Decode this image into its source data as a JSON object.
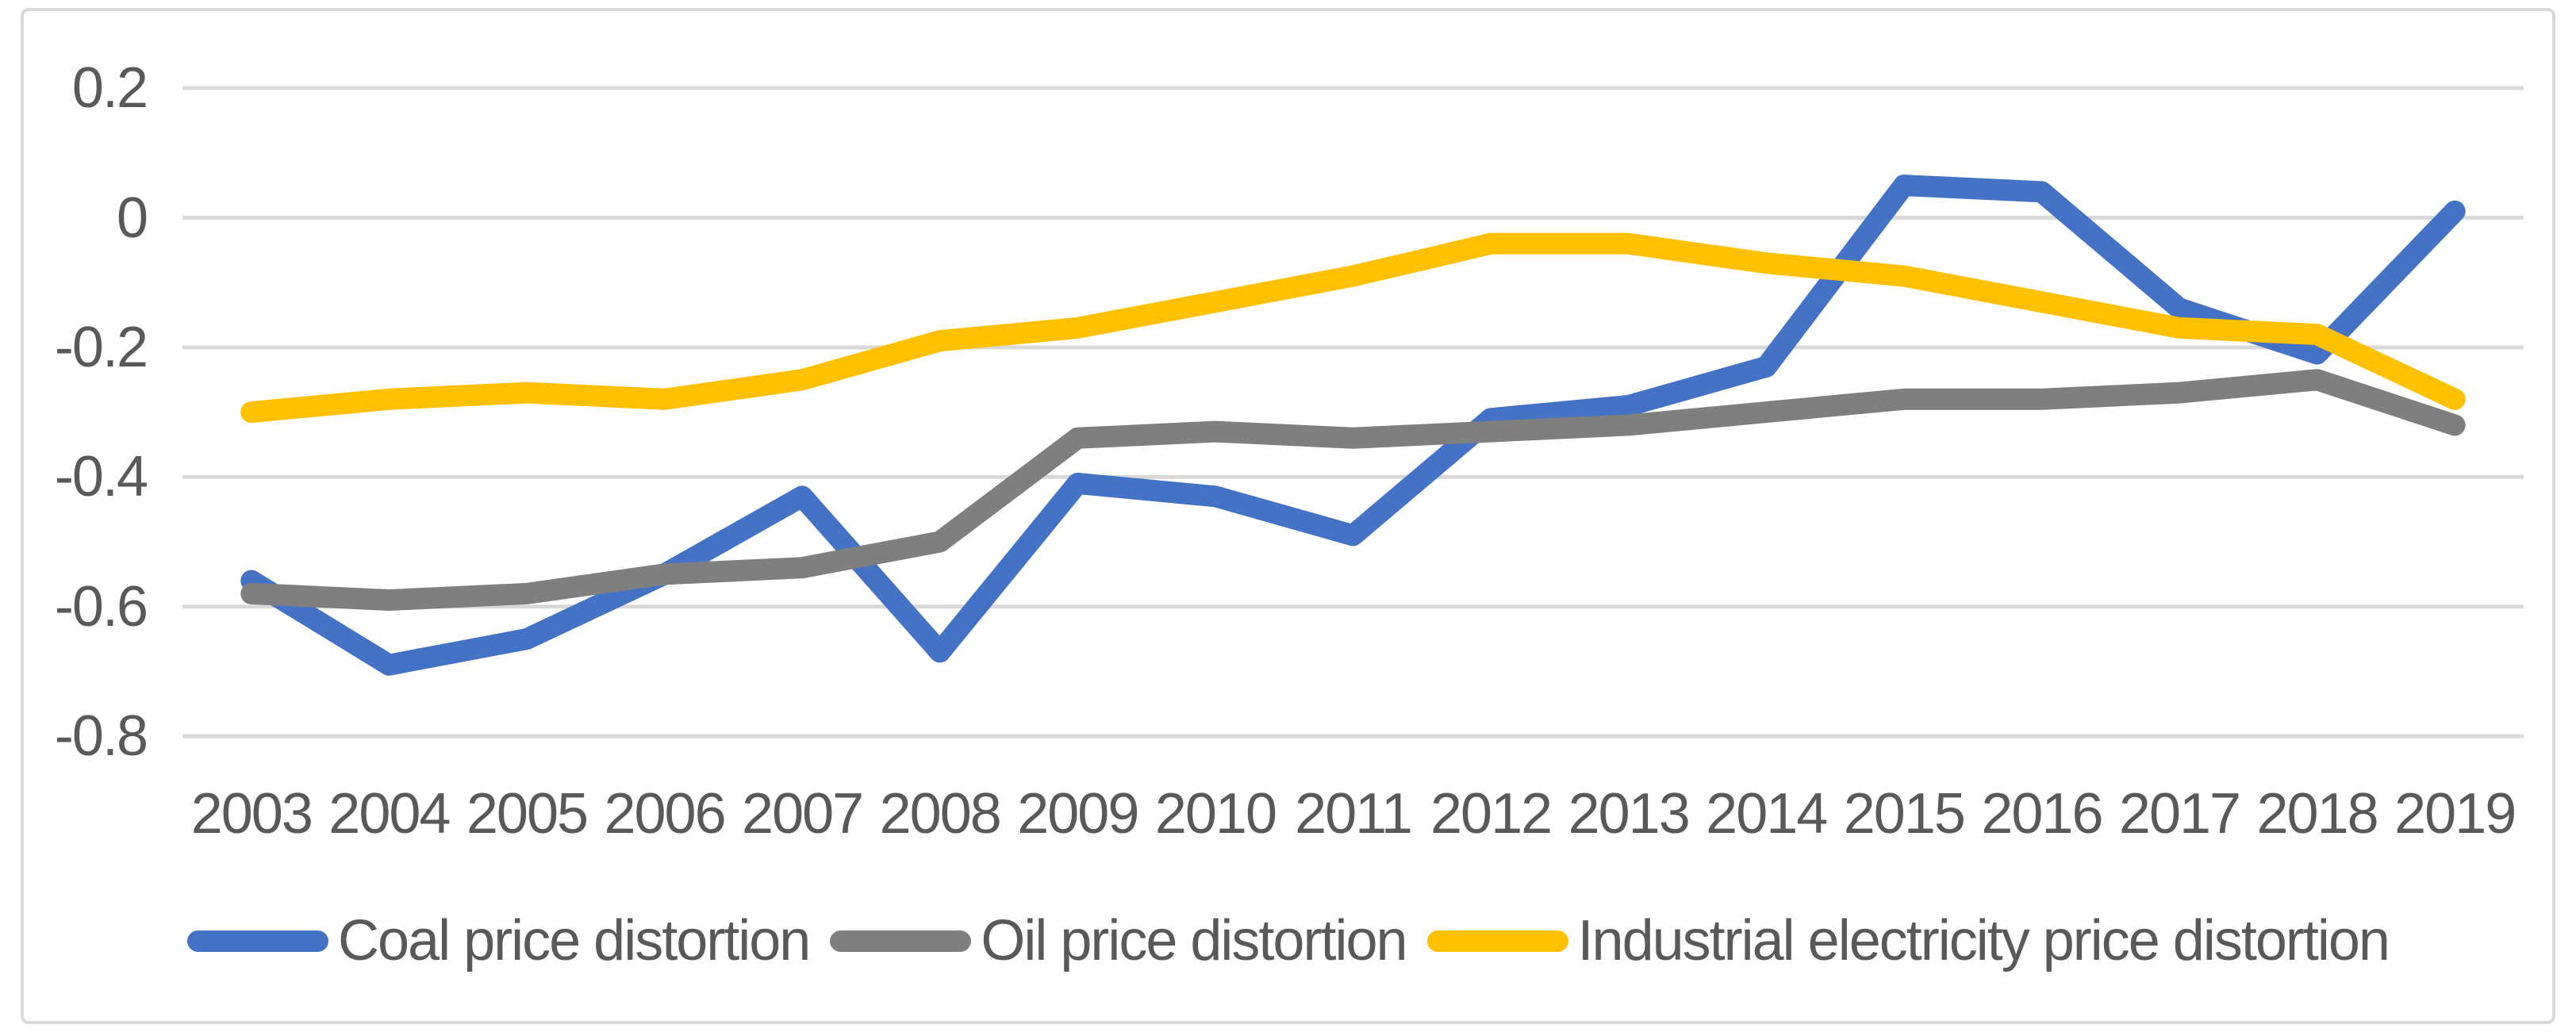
{
  "chart_data": {
    "type": "line",
    "title": "",
    "xlabel": "",
    "ylabel": "",
    "categories": [
      "2003",
      "2004",
      "2005",
      "2006",
      "2007",
      "2008",
      "2009",
      "2010",
      "2011",
      "2012",
      "2013",
      "2014",
      "2015",
      "2016",
      "2017",
      "2018",
      "2019"
    ],
    "series": [
      {
        "name": "Coal price distortion",
        "color": "#4472C4",
        "values": [
          -0.56,
          -0.69,
          -0.65,
          -0.55,
          -0.43,
          -0.67,
          -0.41,
          -0.43,
          -0.49,
          -0.31,
          -0.29,
          -0.23,
          0.05,
          0.04,
          -0.14,
          -0.21,
          0.01
        ]
      },
      {
        "name": "Oil price distortion",
        "color": "#7F7F7F",
        "values": [
          -0.58,
          -0.59,
          -0.58,
          -0.55,
          -0.54,
          -0.5,
          -0.34,
          -0.33,
          -0.34,
          -0.33,
          -0.32,
          -0.3,
          -0.28,
          -0.28,
          -0.27,
          -0.25,
          -0.32
        ]
      },
      {
        "name": "Industrial electricity price distortion",
        "color": "#FFC000",
        "values": [
          -0.3,
          -0.28,
          -0.27,
          -0.28,
          -0.25,
          -0.19,
          -0.17,
          -0.13,
          -0.09,
          -0.04,
          -0.04,
          -0.07,
          -0.09,
          -0.13,
          -0.17,
          -0.18,
          -0.28
        ]
      }
    ],
    "y_tick_labels": [
      "0.2",
      "0",
      "-0.2",
      "-0.4",
      "-0.6",
      "-0.8"
    ],
    "ylim": [
      -0.9,
      0.3
    ],
    "grid": true,
    "legend_position": "bottom",
    "grid_color": "#D9D9D9",
    "border_color": "#D9D9D9",
    "text_color": "#595959",
    "background_color": "#FFFFFF"
  }
}
